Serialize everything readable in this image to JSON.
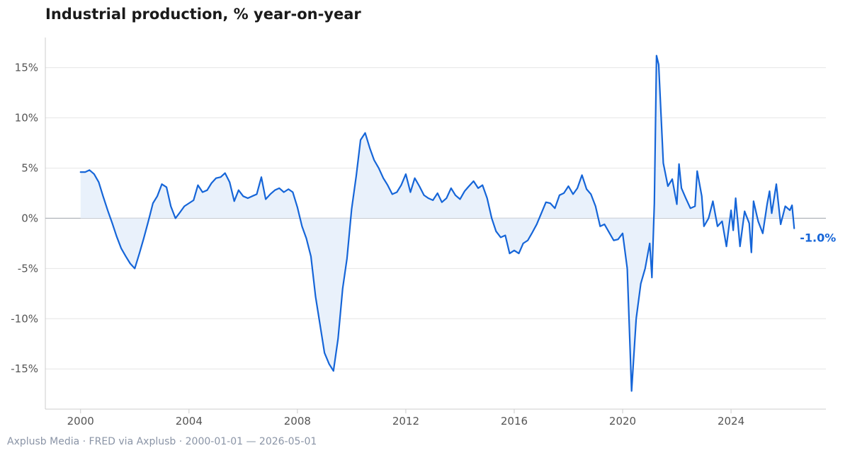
{
  "source_text": "Axplusb Media · FRED via Axplusb · 2000-01-01 — 2026-05-01",
  "colors": {
    "line": "#1565d8",
    "fill": "#e9f1fb",
    "grid": "#e6e6e6",
    "zero": "#b0b4ba",
    "axis": "#cccccc"
  },
  "chart_data": {
    "type": "area",
    "title": "Industrial production, % year-on-year",
    "xlabel": "",
    "ylabel": "",
    "x_unit": "year",
    "xlim": [
      1998.7,
      2027.5
    ],
    "ylim": [
      -19,
      18
    ],
    "yticks": [
      -15,
      -10,
      -5,
      0,
      5,
      10,
      15
    ],
    "ytick_labels": [
      "-15%",
      "-10%",
      "-5%",
      "0%",
      "5%",
      "10%",
      "15%"
    ],
    "xticks": [
      2000,
      2004,
      2008,
      2012,
      2016,
      2020,
      2024
    ],
    "xtick_labels": [
      "2000",
      "2004",
      "2008",
      "2012",
      "2016",
      "2020",
      "2024"
    ],
    "grid": true,
    "end_label": "-1.0%",
    "series": [
      {
        "points": [
          [
            2000.0,
            4.6
          ],
          [
            2000.17,
            4.6
          ],
          [
            2000.33,
            4.8
          ],
          [
            2000.5,
            4.4
          ],
          [
            2000.67,
            3.6
          ],
          [
            2000.83,
            2.2
          ],
          [
            2001.0,
            0.8
          ],
          [
            2001.17,
            -0.5
          ],
          [
            2001.33,
            -1.8
          ],
          [
            2001.5,
            -3.0
          ],
          [
            2001.67,
            -3.8
          ],
          [
            2001.83,
            -4.5
          ],
          [
            2002.0,
            -5.0
          ],
          [
            2002.17,
            -3.5
          ],
          [
            2002.33,
            -2.0
          ],
          [
            2002.5,
            -0.3
          ],
          [
            2002.67,
            1.5
          ],
          [
            2002.83,
            2.2
          ],
          [
            2003.0,
            3.4
          ],
          [
            2003.17,
            3.1
          ],
          [
            2003.33,
            1.2
          ],
          [
            2003.5,
            0.0
          ],
          [
            2003.67,
            0.6
          ],
          [
            2003.83,
            1.2
          ],
          [
            2004.0,
            1.5
          ],
          [
            2004.17,
            1.8
          ],
          [
            2004.33,
            3.3
          ],
          [
            2004.5,
            2.6
          ],
          [
            2004.67,
            2.8
          ],
          [
            2004.83,
            3.5
          ],
          [
            2005.0,
            4.0
          ],
          [
            2005.17,
            4.1
          ],
          [
            2005.33,
            4.5
          ],
          [
            2005.5,
            3.6
          ],
          [
            2005.67,
            1.7
          ],
          [
            2005.83,
            2.8
          ],
          [
            2006.0,
            2.2
          ],
          [
            2006.17,
            2.0
          ],
          [
            2006.33,
            2.2
          ],
          [
            2006.5,
            2.4
          ],
          [
            2006.67,
            4.1
          ],
          [
            2006.83,
            1.9
          ],
          [
            2007.0,
            2.4
          ],
          [
            2007.17,
            2.8
          ],
          [
            2007.33,
            3.0
          ],
          [
            2007.5,
            2.6
          ],
          [
            2007.67,
            2.9
          ],
          [
            2007.83,
            2.6
          ],
          [
            2008.0,
            1.1
          ],
          [
            2008.17,
            -0.8
          ],
          [
            2008.33,
            -2.0
          ],
          [
            2008.5,
            -3.8
          ],
          [
            2008.67,
            -7.8
          ],
          [
            2008.83,
            -10.5
          ],
          [
            2009.0,
            -13.4
          ],
          [
            2009.17,
            -14.5
          ],
          [
            2009.33,
            -15.2
          ],
          [
            2009.5,
            -12.0
          ],
          [
            2009.67,
            -7.0
          ],
          [
            2009.83,
            -4.0
          ],
          [
            2010.0,
            0.9
          ],
          [
            2010.17,
            4.2
          ],
          [
            2010.33,
            7.8
          ],
          [
            2010.5,
            8.5
          ],
          [
            2010.67,
            7.0
          ],
          [
            2010.83,
            5.8
          ],
          [
            2011.0,
            5.0
          ],
          [
            2011.17,
            4.0
          ],
          [
            2011.33,
            3.3
          ],
          [
            2011.5,
            2.4
          ],
          [
            2011.67,
            2.6
          ],
          [
            2011.83,
            3.3
          ],
          [
            2012.0,
            4.4
          ],
          [
            2012.17,
            2.6
          ],
          [
            2012.33,
            4.0
          ],
          [
            2012.5,
            3.2
          ],
          [
            2012.67,
            2.3
          ],
          [
            2012.83,
            2.0
          ],
          [
            2013.0,
            1.8
          ],
          [
            2013.17,
            2.5
          ],
          [
            2013.33,
            1.6
          ],
          [
            2013.5,
            2.0
          ],
          [
            2013.67,
            3.0
          ],
          [
            2013.83,
            2.3
          ],
          [
            2014.0,
            1.9
          ],
          [
            2014.17,
            2.7
          ],
          [
            2014.33,
            3.2
          ],
          [
            2014.5,
            3.7
          ],
          [
            2014.67,
            3.0
          ],
          [
            2014.83,
            3.3
          ],
          [
            2015.0,
            2.0
          ],
          [
            2015.17,
            0.0
          ],
          [
            2015.33,
            -1.3
          ],
          [
            2015.5,
            -1.9
          ],
          [
            2015.67,
            -1.7
          ],
          [
            2015.83,
            -3.5
          ],
          [
            2016.0,
            -3.2
          ],
          [
            2016.17,
            -3.5
          ],
          [
            2016.33,
            -2.5
          ],
          [
            2016.5,
            -2.2
          ],
          [
            2016.67,
            -1.4
          ],
          [
            2016.83,
            -0.6
          ],
          [
            2017.0,
            0.5
          ],
          [
            2017.17,
            1.6
          ],
          [
            2017.33,
            1.5
          ],
          [
            2017.5,
            1.0
          ],
          [
            2017.67,
            2.3
          ],
          [
            2017.83,
            2.5
          ],
          [
            2018.0,
            3.2
          ],
          [
            2018.17,
            2.4
          ],
          [
            2018.33,
            3.0
          ],
          [
            2018.5,
            4.3
          ],
          [
            2018.67,
            2.9
          ],
          [
            2018.83,
            2.4
          ],
          [
            2019.0,
            1.2
          ],
          [
            2019.17,
            -0.8
          ],
          [
            2019.33,
            -0.6
          ],
          [
            2019.5,
            -1.4
          ],
          [
            2019.67,
            -2.2
          ],
          [
            2019.83,
            -2.1
          ],
          [
            2020.0,
            -1.5
          ],
          [
            2020.17,
            -5.0
          ],
          [
            2020.33,
            -17.2
          ],
          [
            2020.5,
            -10.0
          ],
          [
            2020.67,
            -6.5
          ],
          [
            2020.83,
            -5.0
          ],
          [
            2021.0,
            -2.5
          ],
          [
            2021.08,
            -5.9
          ],
          [
            2021.17,
            1.5
          ],
          [
            2021.25,
            16.2
          ],
          [
            2021.33,
            15.3
          ],
          [
            2021.5,
            5.5
          ],
          [
            2021.67,
            3.2
          ],
          [
            2021.83,
            3.9
          ],
          [
            2022.0,
            1.4
          ],
          [
            2022.08,
            5.4
          ],
          [
            2022.17,
            3.0
          ],
          [
            2022.33,
            2.0
          ],
          [
            2022.5,
            1.0
          ],
          [
            2022.67,
            1.2
          ],
          [
            2022.75,
            4.7
          ],
          [
            2022.92,
            2.2
          ],
          [
            2023.0,
            -0.8
          ],
          [
            2023.17,
            0.0
          ],
          [
            2023.33,
            1.7
          ],
          [
            2023.5,
            -0.8
          ],
          [
            2023.67,
            -0.3
          ],
          [
            2023.83,
            -2.8
          ],
          [
            2024.0,
            0.8
          ],
          [
            2024.08,
            -1.2
          ],
          [
            2024.17,
            2.0
          ],
          [
            2024.33,
            -2.8
          ],
          [
            2024.5,
            0.7
          ],
          [
            2024.67,
            -0.5
          ],
          [
            2024.75,
            -3.4
          ],
          [
            2024.83,
            1.7
          ],
          [
            2025.0,
            -0.3
          ],
          [
            2025.17,
            -1.5
          ],
          [
            2025.33,
            1.4
          ],
          [
            2025.42,
            2.7
          ],
          [
            2025.5,
            0.5
          ],
          [
            2025.67,
            3.4
          ],
          [
            2025.83,
            -0.6
          ],
          [
            2026.0,
            1.2
          ],
          [
            2026.17,
            0.8
          ],
          [
            2026.25,
            1.3
          ],
          [
            2026.33,
            -1.0
          ]
        ]
      }
    ]
  }
}
